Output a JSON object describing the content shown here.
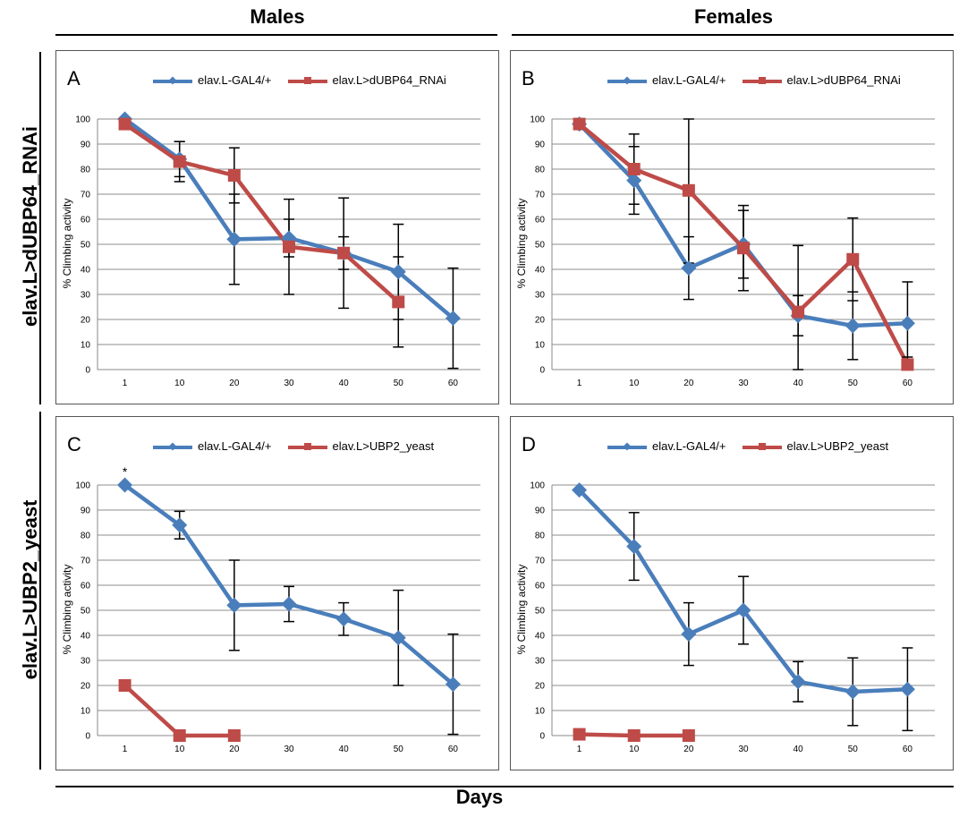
{
  "column_titles": [
    "Males",
    "Females"
  ],
  "row_titles": [
    "elav.L>dUBP64_RNAi",
    "elav.L>UBP2_yeast"
  ],
  "x_axis_label": "Days",
  "colors": {
    "control": "#4a7ebb",
    "treated": "#be4b48",
    "grid": "#8c8c8c"
  },
  "chart_data": [
    {
      "type": "line",
      "panel": "A",
      "categories": [
        "1",
        "10",
        "20",
        "30",
        "40",
        "50",
        "60"
      ],
      "ylabel": "% Climbing activity",
      "ylim": [
        0,
        100
      ],
      "yticks": [
        0,
        10,
        20,
        30,
        40,
        50,
        60,
        70,
        80,
        90,
        100
      ],
      "grid": true,
      "legend_position": "top",
      "series": [
        {
          "name": "elav.L-GAL4/+",
          "color": "#4a7ebb",
          "marker": "diamond",
          "values": [
            100,
            84,
            52,
            52.5,
            46.5,
            39,
            20.5
          ],
          "errors": [
            0,
            7,
            18,
            7.5,
            6.5,
            19,
            20
          ]
        },
        {
          "name": "elav.L>dUBP64_RNAi",
          "color": "#be4b48",
          "marker": "square",
          "values": [
            98,
            83,
            77.5,
            49,
            46.5,
            27,
            null
          ],
          "errors": [
            0,
            8,
            11,
            19,
            22,
            18,
            null
          ]
        }
      ],
      "annotations": []
    },
    {
      "type": "line",
      "panel": "B",
      "categories": [
        "1",
        "10",
        "20",
        "30",
        "40",
        "50",
        "60"
      ],
      "ylabel": "% Climbing activity",
      "ylim": [
        0,
        100
      ],
      "yticks": [
        0,
        10,
        20,
        30,
        40,
        50,
        60,
        70,
        80,
        90,
        100
      ],
      "grid": true,
      "legend_position": "top",
      "series": [
        {
          "name": "elav.L-GAL4/+",
          "color": "#4a7ebb",
          "marker": "diamond",
          "values": [
            98,
            75.5,
            40.5,
            50,
            21.5,
            17.5,
            18.5
          ],
          "errors": [
            0,
            13.5,
            12.5,
            13.5,
            8,
            13.5,
            16.5
          ]
        },
        {
          "name": "elav.L>dUBP64_RNAi",
          "color": "#be4b48",
          "marker": "square",
          "values": [
            98,
            80,
            71.5,
            48.5,
            23,
            44,
            2
          ],
          "errors": [
            0,
            14,
            29,
            17,
            26.5,
            16.5,
            3
          ]
        }
      ],
      "annotations": []
    },
    {
      "type": "line",
      "panel": "C",
      "categories": [
        "1",
        "10",
        "20",
        "30",
        "40",
        "50",
        "60"
      ],
      "ylabel": "% Climbing activity",
      "ylim": [
        0,
        100
      ],
      "yticks": [
        0,
        10,
        20,
        30,
        40,
        50,
        60,
        70,
        80,
        90,
        100
      ],
      "grid": true,
      "legend_position": "top",
      "series": [
        {
          "name": "elav.L-GAL4/+",
          "color": "#4a7ebb",
          "marker": "diamond",
          "values": [
            100,
            84,
            52,
            52.5,
            46.5,
            39,
            20.5
          ],
          "errors": [
            0,
            5.5,
            18,
            7,
            6.5,
            19,
            20
          ]
        },
        {
          "name": "elav.L>UBP2_yeast",
          "color": "#be4b48",
          "marker": "square",
          "values": [
            20,
            0,
            0,
            null,
            null,
            null,
            null
          ],
          "errors": [
            0,
            0,
            0,
            null,
            null,
            null,
            null
          ]
        }
      ],
      "annotations": [
        {
          "text": "*",
          "category": "1",
          "y": 100
        }
      ]
    },
    {
      "type": "line",
      "panel": "D",
      "categories": [
        "1",
        "10",
        "20",
        "30",
        "40",
        "50",
        "60"
      ],
      "ylabel": "% Climbing activity",
      "ylim": [
        0,
        100
      ],
      "yticks": [
        0,
        10,
        20,
        30,
        40,
        50,
        60,
        70,
        80,
        90,
        100
      ],
      "grid": true,
      "legend_position": "top",
      "series": [
        {
          "name": "elav.L-GAL4/+",
          "color": "#4a7ebb",
          "marker": "diamond",
          "values": [
            98,
            75.5,
            40.5,
            50,
            21.5,
            17.5,
            18.5
          ],
          "errors": [
            0,
            13.5,
            12.5,
            13.5,
            8,
            13.5,
            16.5
          ]
        },
        {
          "name": "elav.L>UBP2_yeast",
          "color": "#be4b48",
          "marker": "square",
          "values": [
            0.5,
            0,
            0,
            null,
            null,
            null,
            null
          ],
          "errors": [
            0,
            0,
            0,
            null,
            null,
            null,
            null
          ]
        }
      ],
      "annotations": []
    }
  ]
}
